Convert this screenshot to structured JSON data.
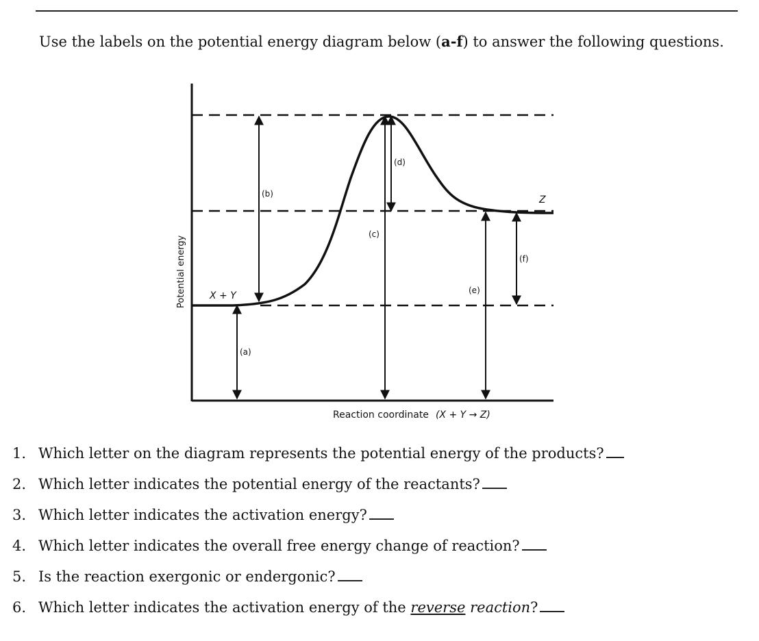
{
  "instructions": {
    "prefix": "Use the labels on the potential energy diagram below (",
    "range": "a-f",
    "suffix": ") to answer the following questions."
  },
  "diagram": {
    "y_axis_label": "Potential energy",
    "x_axis_label": "Reaction coordinate",
    "x_axis_reaction": "(X + Y → Z)",
    "reactants_label": "X + Y",
    "products_label": "Z",
    "labels": {
      "a": "(a)",
      "b": "(b)",
      "c": "(c)",
      "d": "(d)",
      "e": "(e)",
      "f": "(f)"
    }
  },
  "questions": [
    {
      "num": "1.",
      "text": "Which letter on the diagram represents the potential energy of the products?"
    },
    {
      "num": "2.",
      "text": "Which letter indicates the potential energy of the reactants?"
    },
    {
      "num": "3.",
      "text": "Which letter indicates the activation energy?"
    },
    {
      "num": "4.",
      "text": "Which letter indicates the overall free energy change of reaction?"
    },
    {
      "num": "5.",
      "text": "Is the reaction exergonic or endergonic?"
    },
    {
      "num": "6.",
      "pre": "Which letter indicates the activation energy of the ",
      "emph": "reverse",
      "post": " reaction",
      "mark": "?"
    }
  ]
}
